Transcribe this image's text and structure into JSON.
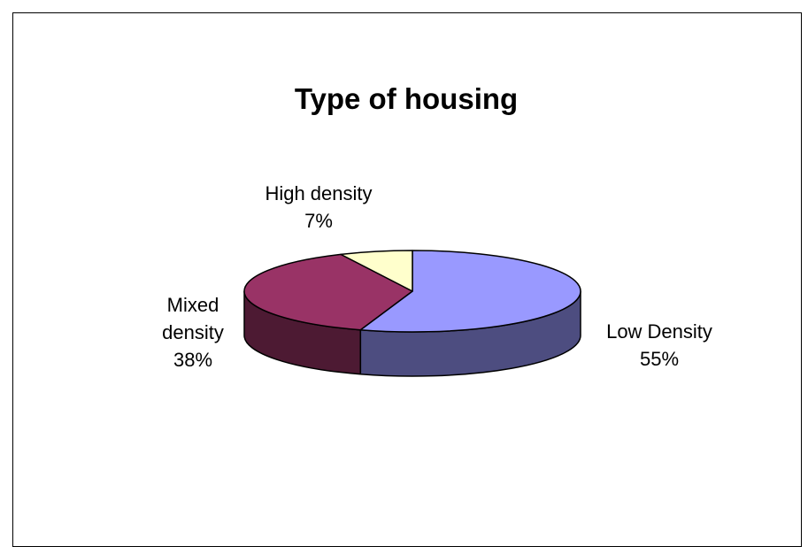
{
  "chart_data": {
    "type": "pie",
    "style": "3d",
    "title": "Type of housing",
    "slices": [
      {
        "label_lines": [
          "Low Density",
          "55%"
        ],
        "name": "Low Density",
        "value": 55,
        "top_color": "#9999ff",
        "side_color": "#4d4d80"
      },
      {
        "label_lines": [
          "Mixed",
          "density",
          "38%"
        ],
        "name": "Mixed density",
        "value": 38,
        "top_color": "#993366",
        "side_color": "#4d1a33"
      },
      {
        "label_lines": [
          "High density",
          "7%"
        ],
        "name": "High density",
        "value": 7,
        "top_color": "#ffffcc",
        "side_color": "#80805f"
      }
    ]
  }
}
